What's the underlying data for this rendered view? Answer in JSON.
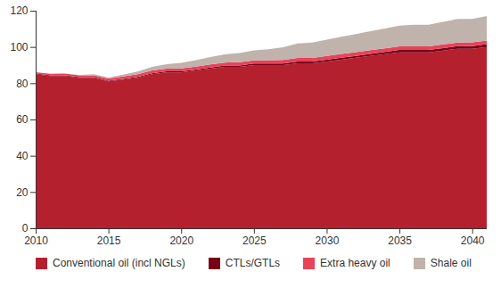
{
  "chart_data": {
    "type": "area",
    "stacked": true,
    "grid": false,
    "legend": "bottom",
    "x": [
      2010,
      2011,
      2012,
      2013,
      2014,
      2015,
      2016,
      2017,
      2018,
      2019,
      2020,
      2021,
      2022,
      2023,
      2024,
      2025,
      2026,
      2027,
      2028,
      2029,
      2030,
      2031,
      2032,
      2033,
      2034,
      2035,
      2036,
      2037,
      2038,
      2039,
      2040,
      2041
    ],
    "xlim": [
      2010,
      2041
    ],
    "xticks": [
      2010,
      2015,
      2020,
      2025,
      2030,
      2035,
      2040
    ],
    "ylim": [
      0,
      120
    ],
    "yticks": [
      0,
      20,
      40,
      60,
      80,
      100,
      120
    ],
    "series": [
      {
        "name": "Conventional oil (incl NGLs)",
        "color": "#b5202e",
        "values": [
          85,
          84,
          84,
          83,
          83,
          81,
          82,
          83,
          85,
          86,
          86,
          87,
          88,
          89,
          89,
          90,
          90,
          90,
          91,
          91,
          92,
          93,
          94,
          95,
          96,
          97,
          97,
          97,
          98,
          99,
          99,
          100
        ]
      },
      {
        "name": "CTLs/GTLs",
        "color": "#7a0018",
        "values": [
          0.3,
          0.3,
          0.3,
          0.3,
          0.3,
          0.4,
          0.4,
          0.5,
          0.5,
          0.5,
          0.6,
          0.6,
          0.7,
          0.7,
          0.8,
          0.8,
          0.9,
          0.9,
          1,
          1,
          1,
          1.1,
          1.1,
          1.2,
          1.2,
          1.3,
          1.3,
          1.3,
          1.4,
          1.4,
          1.5,
          1.5
        ]
      },
      {
        "name": "Extra heavy oil",
        "color": "#e8435a",
        "values": [
          0.8,
          0.9,
          1,
          1,
          1.1,
          1.2,
          1.3,
          1.4,
          1.5,
          1.5,
          1.6,
          1.6,
          1.7,
          1.7,
          1.8,
          1.8,
          1.8,
          1.9,
          1.9,
          1.9,
          2,
          2,
          2,
          2,
          2,
          2,
          2,
          2,
          2,
          2,
          2,
          2
        ]
      },
      {
        "name": "Shale oil",
        "color": "#bfb3ab",
        "values": [
          0,
          0,
          0,
          0.3,
          0.5,
          0.5,
          1,
          1.5,
          2,
          2.5,
          3,
          3.5,
          4,
          4.5,
          5,
          5.5,
          6,
          7,
          8,
          8.5,
          9,
          9.5,
          10,
          10.5,
          11,
          11.5,
          12,
          12,
          12.5,
          13,
          13,
          13.5
        ]
      }
    ]
  }
}
